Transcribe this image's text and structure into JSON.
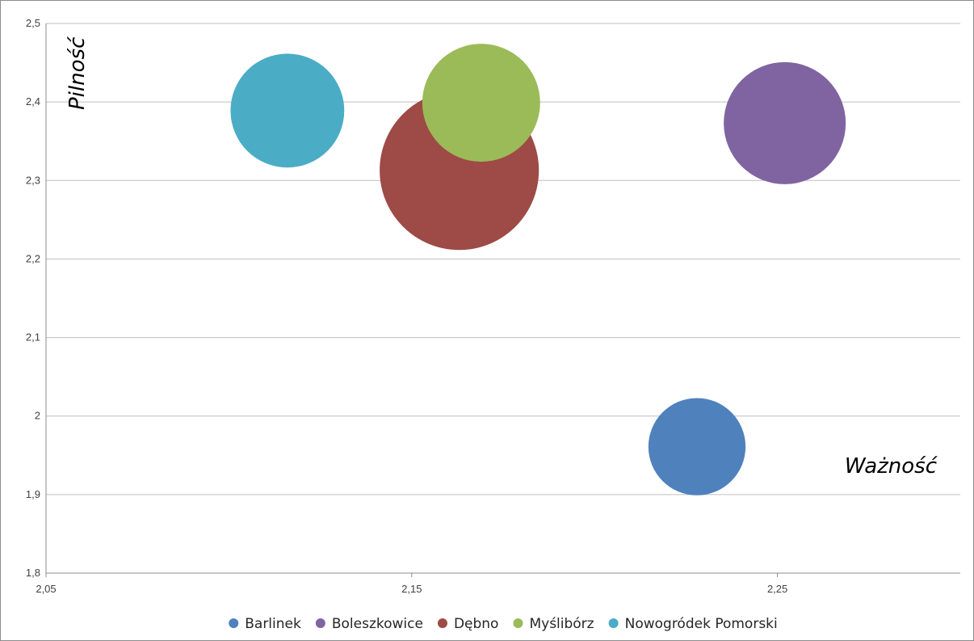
{
  "chart_data": {
    "type": "bubble",
    "title": "",
    "xlabel": "Ważność",
    "ylabel": "Pilność",
    "xlim": [
      2.05,
      2.3
    ],
    "ylim": [
      1.8,
      2.5
    ],
    "x_ticks": [
      "2,05",
      "2,15",
      "2,25"
    ],
    "x_tick_values": [
      2.05,
      2.15,
      2.25
    ],
    "y_ticks": [
      "1,8",
      "1,9",
      "2",
      "2,1",
      "2,2",
      "2,3",
      "2,4",
      "2,5"
    ],
    "y_tick_values": [
      1.8,
      1.9,
      2.0,
      2.1,
      2.2,
      2.3,
      2.4,
      2.5
    ],
    "grid": "horizontal",
    "legend_position": "bottom",
    "series": [
      {
        "name": "Barlinek",
        "x": 2.228,
        "y": 1.961,
        "size": 0.47,
        "color": "#4F81BD"
      },
      {
        "name": "Boleszkowice",
        "x": 2.252,
        "y": 2.373,
        "size": 0.59,
        "color": "#8064A2"
      },
      {
        "name": "Dębno",
        "x": 2.163,
        "y": 2.313,
        "size": 0.77,
        "color": "#9E4A47"
      },
      {
        "name": "Myślibórz",
        "x": 2.169,
        "y": 2.399,
        "size": 0.57,
        "color": "#9BBB59"
      },
      {
        "name": "Nowogródek Pomorski",
        "x": 2.116,
        "y": 2.389,
        "size": 0.55,
        "color": "#4BACC6"
      }
    ]
  }
}
